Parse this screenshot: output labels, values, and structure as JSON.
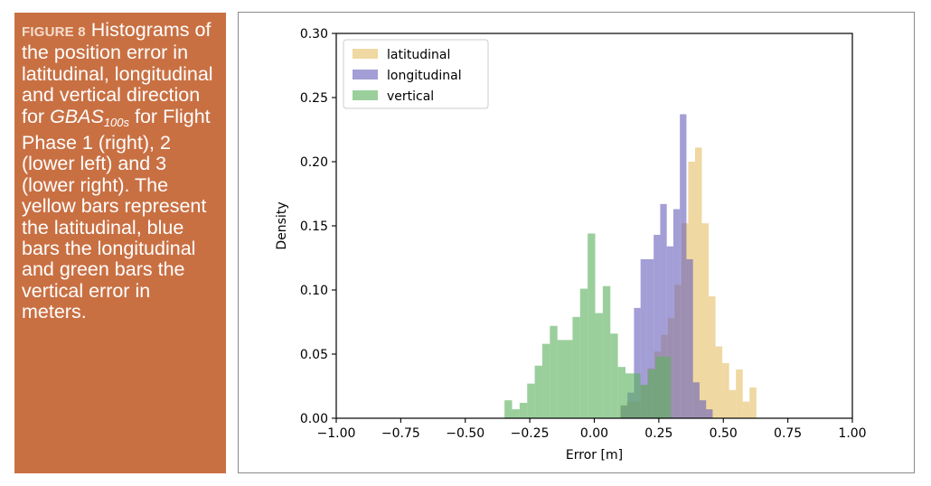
{
  "caption": {
    "figure_label": "FIGURE 8",
    "text_before": "Histograms of the position error in latitudinal, longitudinal and vertical direction for ",
    "italic_main": "GBAS",
    "italic_sub": "100s",
    "text_after": " for Flight Phase 1 (right), 2 (lower left) and 3 (lower right). The yellow bars represent the latitudinal, blue bars the longitudinal and green bars the vertical error in meters."
  },
  "colors": {
    "latitudinal": "#e5c067",
    "longitudinal": "#6a63bb",
    "vertical": "#5cb260",
    "caption_bg": "#c97043"
  },
  "chart_data": {
    "type": "histogram",
    "title": "",
    "xlabel": "Error [m]",
    "ylabel": "Density",
    "xlim": [
      -1.0,
      1.0
    ],
    "ylim": [
      0.0,
      0.3
    ],
    "xticks": [
      -1.0,
      -0.75,
      -0.5,
      -0.25,
      0.0,
      0.25,
      0.5,
      0.75,
      1.0
    ],
    "xtick_labels": [
      "−1.00",
      "−0.75",
      "−0.50",
      "−0.25",
      "0.00",
      "0.25",
      "0.50",
      "0.75",
      "1.00"
    ],
    "yticks": [
      0.0,
      0.05,
      0.1,
      0.15,
      0.2,
      0.25,
      0.3
    ],
    "ytick_labels": [
      "0.00",
      "0.05",
      "0.10",
      "0.15",
      "0.20",
      "0.25",
      "0.30"
    ],
    "legend_position": "top-left",
    "series": [
      {
        "name": "latitudinal",
        "bin_start": 0.1,
        "bin_width": 0.0264,
        "values": [
          0.01,
          0.013,
          0.013,
          0.026,
          0.039,
          0.052,
          0.065,
          0.078,
          0.104,
          0.152,
          0.2,
          0.211,
          0.152,
          0.095,
          0.056,
          0.043,
          0.022,
          0.038,
          0.013,
          0.024
        ]
      },
      {
        "name": "longitudinal",
        "bin_start": 0.103,
        "bin_width": 0.0254,
        "values": [
          0.01,
          0.02,
          0.086,
          0.124,
          0.124,
          0.143,
          0.167,
          0.134,
          0.163,
          0.237,
          0.124,
          0.028,
          0.014,
          0.007
        ]
      },
      {
        "name": "vertical",
        "bin_start": -0.348,
        "bin_width": 0.0293,
        "values": [
          0.014,
          0.007,
          0.012,
          0.027,
          0.041,
          0.058,
          0.072,
          0.061,
          0.061,
          0.079,
          0.101,
          0.144,
          0.082,
          0.103,
          0.066,
          0.04,
          0.035,
          0.035,
          0.026,
          0.038,
          0.048,
          0.048
        ]
      }
    ]
  }
}
